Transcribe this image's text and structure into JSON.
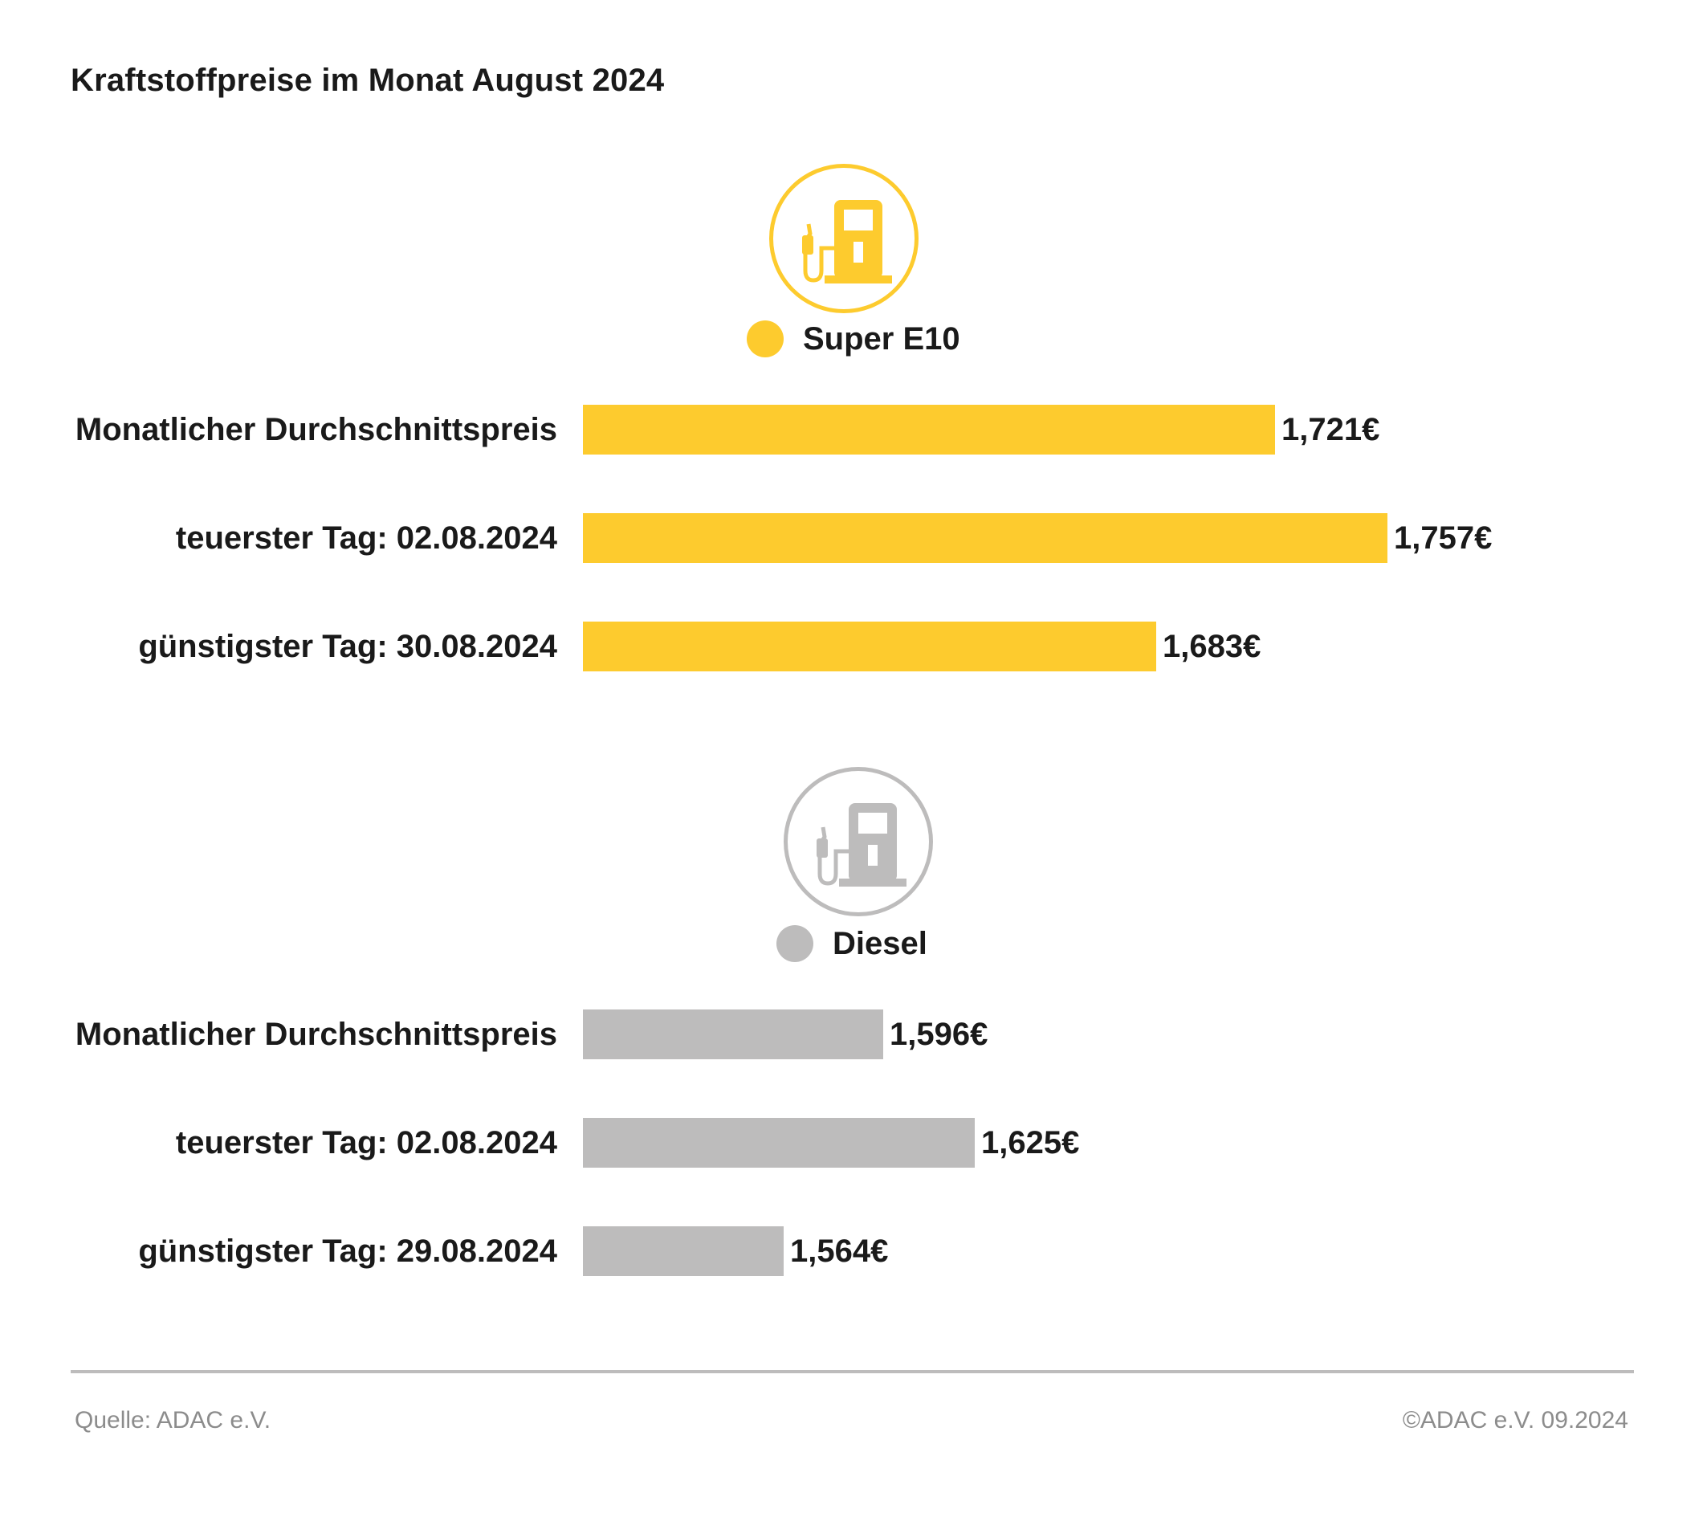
{
  "title": "Kraftstoffpreise im Monat August 2024",
  "colors": {
    "super": "#fdcb2e",
    "diesel": "#bdbcbc",
    "text": "#1a1a1a",
    "footer": "#8c8c8c"
  },
  "icons": [
    "fuel-pump-icon",
    "fuel-pump-icon"
  ],
  "chart_data": [
    {
      "type": "bar",
      "orientation": "horizontal",
      "legend": "Super E10",
      "categories": [
        "Monatlicher Durchschnittspreis",
        "teuerster Tag: 02.08.2024",
        "günstigster Tag: 30.08.2024"
      ],
      "values": [
        1.721,
        1.757,
        1.683
      ],
      "value_labels": [
        "1,721€",
        "1,757€",
        "1,683€"
      ],
      "color": "#fdcb2e"
    },
    {
      "type": "bar",
      "orientation": "horizontal",
      "legend": "Diesel",
      "categories": [
        "Monatlicher Durchschnittspreis",
        "teuerster Tag: 02.08.2024",
        "günstigster Tag: 29.08.2024"
      ],
      "values": [
        1.596,
        1.625,
        1.564
      ],
      "value_labels": [
        "1,596€",
        "1,625€",
        "1,564€"
      ],
      "color": "#bdbcbc"
    }
  ],
  "footer": {
    "source": "Quelle: ADAC e.V.",
    "copyright": "©ADAC e.V. 09.2024"
  }
}
